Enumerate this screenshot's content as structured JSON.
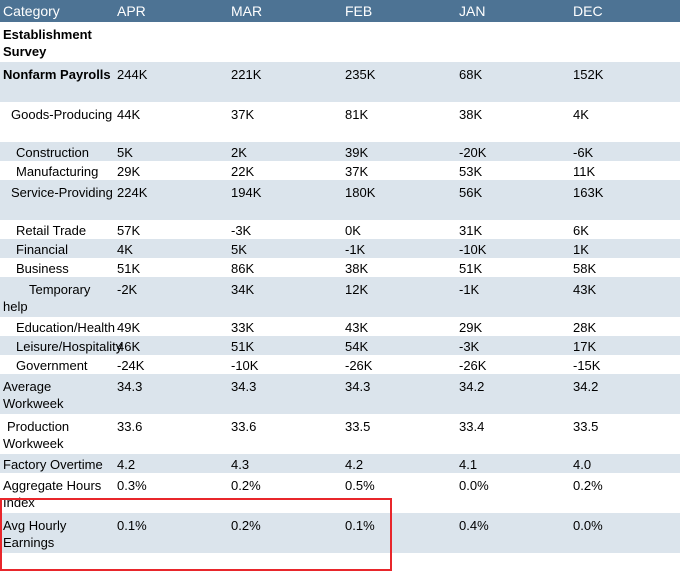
{
  "header": [
    "Category",
    "APR",
    "MAR",
    "FEB",
    "JAN",
    "DEC"
  ],
  "rows": [
    {
      "label": "Establishment Survey",
      "values": [
        "",
        "",
        "",
        "",
        ""
      ]
    },
    {
      "label": "Nonfarm Payrolls",
      "values": [
        "244K",
        "221K",
        "235K",
        "68K",
        "152K"
      ]
    },
    {
      "label": "Goods-Producing",
      "values": [
        "44K",
        "37K",
        "81K",
        "38K",
        "4K"
      ]
    },
    {
      "label": "Construction",
      "values": [
        "5K",
        "2K",
        "39K",
        "-20K",
        "-6K"
      ]
    },
    {
      "label": "Manufacturing",
      "values": [
        "29K",
        "22K",
        "37K",
        "53K",
        "11K"
      ]
    },
    {
      "label": "Service-Providing",
      "values": [
        "224K",
        "194K",
        "180K",
        "56K",
        "163K"
      ]
    },
    {
      "label": "Retail Trade",
      "values": [
        "57K",
        "-3K",
        "0K",
        "31K",
        "6K"
      ]
    },
    {
      "label": "Financial",
      "values": [
        "4K",
        "5K",
        "-1K",
        "-10K",
        "1K"
      ]
    },
    {
      "label": "Business",
      "values": [
        "51K",
        "86K",
        "38K",
        "51K",
        "58K"
      ]
    },
    {
      "label": "Temporary help",
      "values": [
        "-2K",
        "34K",
        "12K",
        "-1K",
        "43K"
      ]
    },
    {
      "label": "Education/Health",
      "values": [
        "49K",
        "33K",
        "43K",
        "29K",
        "28K"
      ]
    },
    {
      "label": "Leisure/Hospitality",
      "values": [
        "46K",
        "51K",
        "54K",
        "-3K",
        "17K"
      ]
    },
    {
      "label": "Government",
      "values": [
        "-24K",
        "-10K",
        "-26K",
        "-26K",
        "-15K"
      ]
    },
    {
      "label": "Average Workweek",
      "values": [
        "34.3",
        "34.3",
        "34.3",
        "34.2",
        "34.2"
      ]
    },
    {
      "label": "Production Workweek",
      "values": [
        "33.6",
        "33.6",
        "33.5",
        "33.4",
        "33.5"
      ]
    },
    {
      "label": "Factory Overtime",
      "values": [
        "4.2",
        "4.3",
        "4.2",
        "4.1",
        "4.0"
      ]
    },
    {
      "label": "Aggregate Hours Index",
      "values": [
        "0.3%",
        "0.2%",
        "0.5%",
        "0.0%",
        "0.2%"
      ]
    },
    {
      "label": "Avg Hourly Earnings",
      "values": [
        "0.1%",
        "0.2%",
        "0.1%",
        "0.4%",
        "0.0%"
      ]
    }
  ]
}
